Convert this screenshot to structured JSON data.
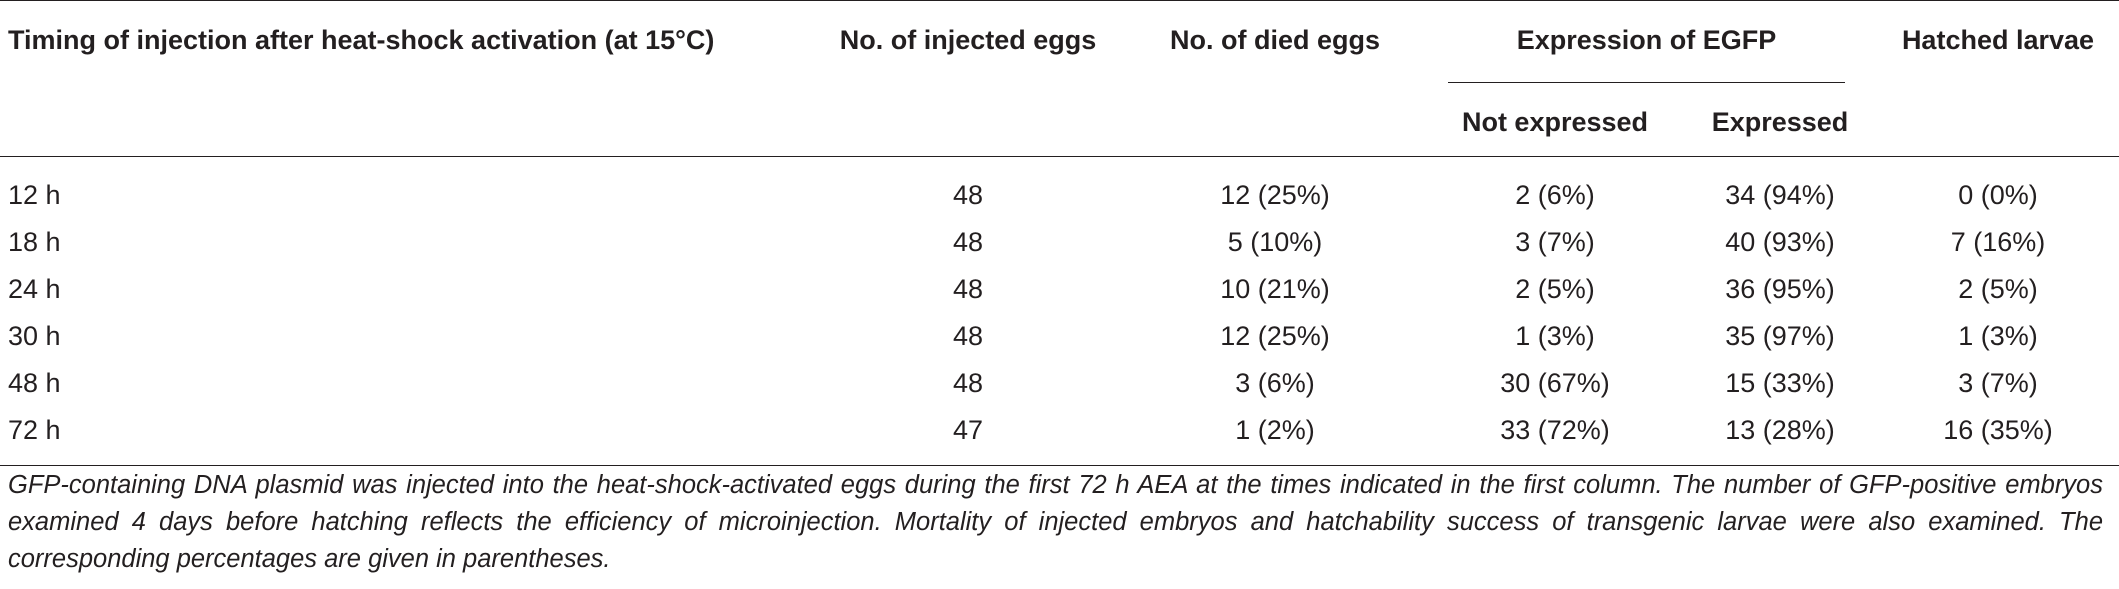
{
  "table": {
    "headers": {
      "timing": "Timing of injection after heat-shock activation (at 15°C)",
      "injected": "No. of injected eggs",
      "died": "No. of died eggs",
      "expression_group": "Expression of EGFP",
      "not_expressed": "Not expressed",
      "expressed": "Expressed",
      "hatched": "Hatched larvae"
    },
    "rows": [
      {
        "timing": "12 h",
        "injected": "48",
        "died": "12 (25%)",
        "not_expressed": "2 (6%)",
        "expressed": "34 (94%)",
        "hatched": "0 (0%)"
      },
      {
        "timing": "18 h",
        "injected": "48",
        "died": "5 (10%)",
        "not_expressed": "3 (7%)",
        "expressed": "40 (93%)",
        "hatched": "7 (16%)"
      },
      {
        "timing": "24 h",
        "injected": "48",
        "died": "10 (21%)",
        "not_expressed": "2 (5%)",
        "expressed": "36 (95%)",
        "hatched": "2 (5%)"
      },
      {
        "timing": "30 h",
        "injected": "48",
        "died": "12 (25%)",
        "not_expressed": "1 (3%)",
        "expressed": "35 (97%)",
        "hatched": "1 (3%)"
      },
      {
        "timing": "48 h",
        "injected": "48",
        "died": "3 (6%)",
        "not_expressed": "30 (67%)",
        "expressed": "15 (33%)",
        "hatched": "3 (7%)"
      },
      {
        "timing": "72 h",
        "injected": "47",
        "died": "1 (2%)",
        "not_expressed": "33 (72%)",
        "expressed": "13 (28%)",
        "hatched": "16 (35%)"
      }
    ]
  },
  "footnote": "GFP-containing DNA plasmid was injected into the heat-shock-activated eggs during the first 72 h AEA at the times indicated in the first column. The number of GFP-positive embryos examined 4 days before hatching reflects the efficiency of microinjection. Mortality of injected embryos and hatchability success of transgenic larvae were also examined. The corresponding percentages are given in parentheses."
}
